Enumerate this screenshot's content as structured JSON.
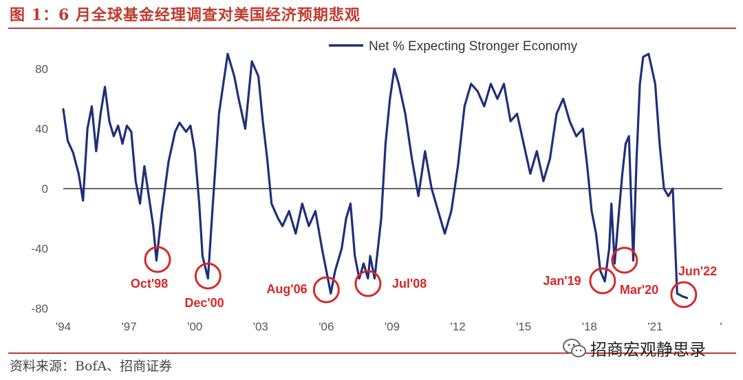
{
  "figure": {
    "title": "图 1：6 月全球基金经理调查对美国经济预期悲观",
    "source": "资料来源：BofA、招商证券",
    "watermark": "招商宏观静思录",
    "watermark_icon": "wechat-icon"
  },
  "chart_data": {
    "type": "line",
    "title": "",
    "xlabel": "",
    "ylabel": "",
    "x_ticks": [
      "'94",
      "'97",
      "'00",
      "'03",
      "'06",
      "'09",
      "'12",
      "'15",
      "'18",
      "'21",
      "'"
    ],
    "x_tick_values": [
      1994,
      1997,
      2000,
      2003,
      2006,
      2009,
      2012,
      2015,
      2018,
      2021,
      2024
    ],
    "y_ticks": [
      "80",
      "40",
      "0",
      "-40",
      "-80"
    ],
    "y_tick_values": [
      80,
      40,
      0,
      -40,
      -80
    ],
    "xlim": [
      1994,
      2024
    ],
    "ylim": [
      -85,
      95
    ],
    "zero_line": true,
    "grid": false,
    "legend_position": "top",
    "colors": {
      "series": "#1f2f7a",
      "highlight": "#d62828",
      "zero_line": "#333333",
      "tick_text": "#555555",
      "title": "#c0392b"
    },
    "series": [
      {
        "name": "Net % Expecting Stronger Economy",
        "x": [
          1994.0,
          1994.2,
          1994.45,
          1994.7,
          1994.9,
          1995.1,
          1995.3,
          1995.5,
          1995.7,
          1995.9,
          1996.1,
          1996.3,
          1996.5,
          1996.7,
          1996.9,
          1997.1,
          1997.3,
          1997.5,
          1997.7,
          1997.9,
          1998.1,
          1998.25,
          1998.5,
          1998.8,
          1999.1,
          1999.3,
          1999.6,
          1999.8,
          2000.0,
          2000.2,
          2000.35,
          2000.6,
          2000.8,
          2001.1,
          2001.3,
          2001.5,
          2001.8,
          2002.0,
          2002.3,
          2002.6,
          2002.9,
          2003.1,
          2003.3,
          2003.5,
          2003.8,
          2004.0,
          2004.3,
          2004.6,
          2004.9,
          2005.2,
          2005.5,
          2005.8,
          2006.0,
          2006.2,
          2006.4,
          2006.7,
          2006.9,
          2007.1,
          2007.3,
          2007.5,
          2007.7,
          2007.9,
          2008.0,
          2008.2,
          2008.35,
          2008.5,
          2008.7,
          2008.9,
          2009.1,
          2009.3,
          2009.6,
          2009.9,
          2010.2,
          2010.5,
          2010.8,
          2011.1,
          2011.4,
          2011.7,
          2012.0,
          2012.3,
          2012.6,
          2012.9,
          2013.2,
          2013.5,
          2013.8,
          2014.1,
          2014.4,
          2014.7,
          2015.0,
          2015.3,
          2015.6,
          2015.9,
          2016.2,
          2016.5,
          2016.8,
          2017.1,
          2017.4,
          2017.7,
          2017.9,
          2018.1,
          2018.3,
          2018.5,
          2018.7,
          2018.9,
          2019.0,
          2019.15,
          2019.35,
          2019.5,
          2019.65,
          2019.8,
          2020.0,
          2020.15,
          2020.3,
          2020.45,
          2020.7,
          2021.0,
          2021.2,
          2021.4,
          2021.6,
          2021.8,
          2022.0,
          2022.25,
          2022.45
        ],
        "y": [
          53,
          32,
          24,
          10,
          -8,
          40,
          55,
          25,
          50,
          68,
          45,
          35,
          42,
          30,
          42,
          38,
          5,
          -10,
          15,
          -5,
          -25,
          -48,
          -15,
          18,
          38,
          44,
          38,
          42,
          25,
          -10,
          -45,
          -60,
          -15,
          50,
          70,
          90,
          75,
          60,
          40,
          85,
          75,
          45,
          20,
          -10,
          -20,
          -25,
          -15,
          -30,
          -10,
          -25,
          -15,
          -40,
          -55,
          -70,
          -55,
          -40,
          -20,
          -10,
          -45,
          -60,
          -50,
          -60,
          -45,
          -60,
          -40,
          -20,
          30,
          60,
          80,
          70,
          50,
          20,
          -5,
          25,
          0,
          -15,
          -30,
          -15,
          15,
          55,
          70,
          65,
          55,
          70,
          60,
          70,
          45,
          50,
          30,
          10,
          25,
          5,
          20,
          50,
          60,
          45,
          35,
          40,
          15,
          -15,
          -30,
          -55,
          -62,
          -40,
          -10,
          -50,
          -15,
          10,
          30,
          35,
          -48,
          20,
          70,
          88,
          90,
          70,
          30,
          0,
          -5,
          0,
          -70,
          -72,
          -73
        ]
      }
    ],
    "annotations": [
      {
        "label": "Oct'98",
        "x": 1998.3,
        "y": -48
      },
      {
        "label": "Dec'00",
        "x": 2000.6,
        "y": -60
      },
      {
        "label": "Aug'06",
        "x": 2006.0,
        "y": -70
      },
      {
        "label": "Jul'08",
        "x": 2007.9,
        "y": -63
      },
      {
        "label": "Jan'19",
        "x": 2018.6,
        "y": -62
      },
      {
        "label": "Mar'20",
        "x": 2019.6,
        "y": -48
      },
      {
        "label": "Jun'22",
        "x": 2022.3,
        "y": -73
      }
    ]
  }
}
